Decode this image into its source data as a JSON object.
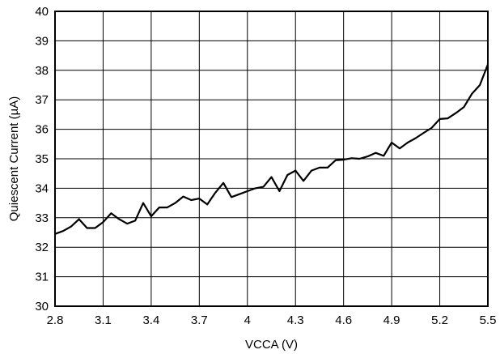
{
  "chart_data": {
    "type": "line",
    "title": "",
    "xlabel": "VCCA (V)",
    "ylabel": "Quiescent Current (µA)",
    "xlim": [
      2.8,
      5.5
    ],
    "ylim": [
      30,
      40
    ],
    "xticks": [
      "2.8",
      "3.1",
      "3.4",
      "3.7",
      "4",
      "4.3",
      "4.6",
      "4.9",
      "5.2",
      "5.5"
    ],
    "yticks": [
      "30",
      "31",
      "32",
      "33",
      "34",
      "35",
      "36",
      "37",
      "38",
      "39",
      "40"
    ],
    "grid": true,
    "line_color": "#000000",
    "series": [
      {
        "x": [
          2.8,
          2.85,
          2.9,
          2.95,
          3.0,
          3.05,
          3.1,
          3.15,
          3.2,
          3.25,
          3.3,
          3.35,
          3.4,
          3.45,
          3.5,
          3.55,
          3.6,
          3.65,
          3.7,
          3.75,
          3.8,
          3.85,
          3.9,
          3.95,
          4.0,
          4.05,
          4.1,
          4.15,
          4.2,
          4.25,
          4.3,
          4.35,
          4.4,
          4.45,
          4.5,
          4.55,
          4.6,
          4.65,
          4.7,
          4.75,
          4.8,
          4.85,
          4.9,
          4.95,
          5.0,
          5.05,
          5.1,
          5.15,
          5.2,
          5.25,
          5.3,
          5.35,
          5.4,
          5.45,
          5.5
        ],
        "values": [
          32.45,
          32.55,
          32.7,
          32.95,
          32.65,
          32.65,
          32.85,
          33.15,
          32.95,
          32.8,
          32.9,
          33.5,
          33.05,
          33.35,
          33.35,
          33.5,
          33.72,
          33.6,
          33.65,
          33.45,
          33.85,
          34.18,
          33.7,
          33.8,
          33.9,
          34.0,
          34.05,
          34.38,
          33.9,
          34.45,
          34.6,
          34.25,
          34.6,
          34.7,
          34.7,
          34.95,
          34.97,
          35.02,
          35.0,
          35.08,
          35.2,
          35.1,
          35.55,
          35.35,
          35.55,
          35.7,
          35.88,
          36.05,
          36.35,
          36.37,
          36.55,
          36.75,
          37.2,
          37.5,
          38.2
        ]
      }
    ]
  }
}
